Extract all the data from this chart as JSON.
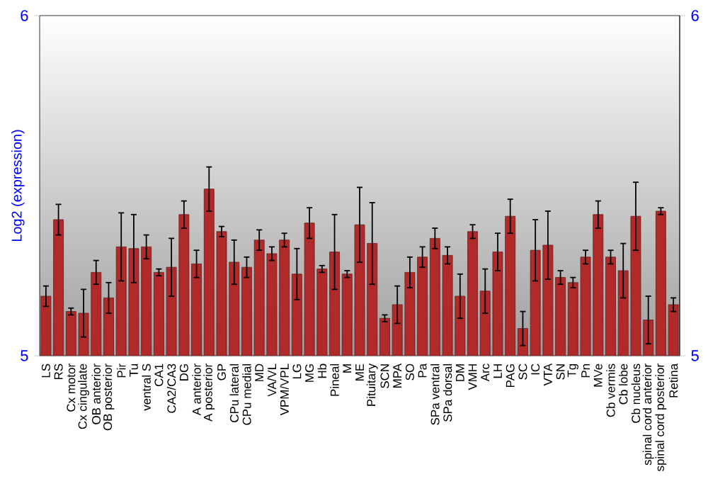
{
  "chart_data": {
    "type": "bar",
    "ylabel": "Log2 (expression)",
    "categories": [
      "LS",
      "RS",
      "Cx motor",
      "Cx cingulate",
      "OB anterior",
      "OB posterior",
      "Pir",
      "Tu",
      "ventral S",
      "CA1",
      "CA2/CA3",
      "DG",
      "A anterior",
      "A posterior",
      "GP",
      "CPu lateral",
      "CPu medial",
      "MD",
      "VA/VL",
      "VPM/VPL",
      "LG",
      "MG",
      "Hb",
      "Pineal",
      "M",
      "ME",
      "Pituitary",
      "SCN",
      "MPA",
      "SO",
      "Pa",
      "SPa ventral",
      "SPa dorsal",
      "DM",
      "VMH",
      "Arc",
      "LH",
      "PAG",
      "SC",
      "IC",
      "VTA",
      "SN",
      "Tg",
      "Pn",
      "MVe",
      "Cb vermis",
      "Cb lobe",
      "Cb nucleus",
      "spinal cord anterior",
      "spinal cord posterior",
      "Retina"
    ],
    "values": [
      5.175,
      5.4,
      5.13,
      5.125,
      5.245,
      5.17,
      5.32,
      5.315,
      5.32,
      5.245,
      5.26,
      5.415,
      5.27,
      5.49,
      5.365,
      5.275,
      5.26,
      5.34,
      5.3,
      5.34,
      5.24,
      5.39,
      5.255,
      5.305,
      5.24,
      5.385,
      5.33,
      5.11,
      5.15,
      5.245,
      5.29,
      5.345,
      5.295,
      5.175,
      5.365,
      5.19,
      5.305,
      5.41,
      5.08,
      5.31,
      5.325,
      5.23,
      5.215,
      5.29,
      5.415,
      5.29,
      5.25,
      5.41,
      5.105,
      5.425,
      5.15
    ],
    "errors": [
      0.03,
      0.045,
      0.01,
      0.07,
      0.035,
      0.045,
      0.1,
      0.1,
      0.035,
      0.01,
      0.085,
      0.04,
      0.04,
      0.065,
      0.015,
      0.065,
      0.03,
      0.03,
      0.02,
      0.02,
      0.075,
      0.045,
      0.01,
      0.11,
      0.01,
      0.11,
      0.12,
      0.01,
      0.055,
      0.045,
      0.03,
      0.03,
      0.025,
      0.065,
      0.02,
      0.065,
      0.055,
      0.05,
      0.05,
      0.09,
      0.1,
      0.02,
      0.015,
      0.02,
      0.04,
      0.02,
      0.08,
      0.1,
      0.07,
      0.01,
      0.02
    ],
    "color": "#b02a2a",
    "ylim": [
      5,
      6
    ],
    "yticks": [
      5,
      6
    ],
    "y2lim": [
      5,
      6
    ],
    "y2ticks": [
      5,
      6
    ]
  }
}
